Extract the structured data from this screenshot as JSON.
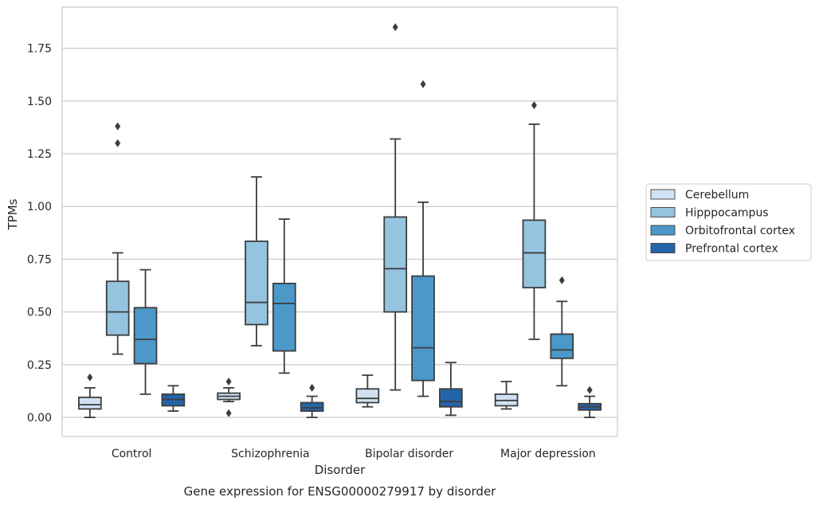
{
  "chart_data": {
    "type": "boxplot",
    "title": "",
    "caption": "Gene expression for ENSG00000279917 by disorder",
    "xlabel": "Disorder",
    "ylabel": "TPMs",
    "ylim": [
      -0.09,
      1.94
    ],
    "yticks": [
      "0.00",
      "0.25",
      "0.50",
      "0.75",
      "1.00",
      "1.25",
      "1.50",
      "1.75"
    ],
    "grid": "horizontal",
    "legend_position": "right",
    "categories": [
      "Control",
      "Schizophrenia",
      "Bipolar disorder",
      "Major depression"
    ],
    "series": [
      {
        "name": "Cerebellum",
        "color": "#d0e1f2",
        "boxes": [
          {
            "whislo": 0.0,
            "q1": 0.04,
            "med": 0.06,
            "q3": 0.095,
            "whishi": 0.14,
            "fliers": [
              0.19
            ]
          },
          {
            "whislo": 0.075,
            "q1": 0.085,
            "med": 0.1,
            "q3": 0.115,
            "whishi": 0.14,
            "fliers": [
              0.02,
              0.17
            ]
          },
          {
            "whislo": 0.05,
            "q1": 0.07,
            "med": 0.09,
            "q3": 0.135,
            "whishi": 0.2,
            "fliers": []
          },
          {
            "whislo": 0.04,
            "q1": 0.055,
            "med": 0.08,
            "q3": 0.11,
            "whishi": 0.17,
            "fliers": []
          }
        ]
      },
      {
        "name": "Hipppocampus",
        "color": "#94c4df",
        "boxes": [
          {
            "whislo": 0.3,
            "q1": 0.39,
            "med": 0.5,
            "q3": 0.645,
            "whishi": 0.78,
            "fliers": [
              1.3,
              1.38
            ]
          },
          {
            "whislo": 0.34,
            "q1": 0.44,
            "med": 0.545,
            "q3": 0.835,
            "whishi": 1.14,
            "fliers": []
          },
          {
            "whislo": 0.13,
            "q1": 0.5,
            "med": 0.705,
            "q3": 0.95,
            "whishi": 1.32,
            "fliers": [
              1.85
            ]
          },
          {
            "whislo": 0.37,
            "q1": 0.615,
            "med": 0.78,
            "q3": 0.935,
            "whishi": 1.39,
            "fliers": [
              1.48
            ]
          }
        ]
      },
      {
        "name": "Orbitofrontal cortex",
        "color": "#4b98c9",
        "boxes": [
          {
            "whislo": 0.11,
            "q1": 0.255,
            "med": 0.37,
            "q3": 0.52,
            "whishi": 0.7,
            "fliers": []
          },
          {
            "whislo": 0.21,
            "q1": 0.315,
            "med": 0.54,
            "q3": 0.635,
            "whishi": 0.94,
            "fliers": []
          },
          {
            "whislo": 0.1,
            "q1": 0.175,
            "med": 0.33,
            "q3": 0.67,
            "whishi": 1.02,
            "fliers": [
              1.58
            ]
          },
          {
            "whislo": 0.15,
            "q1": 0.28,
            "med": 0.32,
            "q3": 0.395,
            "whishi": 0.55,
            "fliers": [
              0.65
            ]
          }
        ]
      },
      {
        "name": "Prefrontal cortex",
        "color": "#2464a9",
        "boxes": [
          {
            "whislo": 0.03,
            "q1": 0.055,
            "med": 0.085,
            "q3": 0.11,
            "whishi": 0.15,
            "fliers": []
          },
          {
            "whislo": 0.0,
            "q1": 0.03,
            "med": 0.045,
            "q3": 0.07,
            "whishi": 0.1,
            "fliers": [
              0.14
            ]
          },
          {
            "whislo": 0.01,
            "q1": 0.05,
            "med": 0.075,
            "q3": 0.135,
            "whishi": 0.26,
            "fliers": []
          },
          {
            "whislo": 0.0,
            "q1": 0.035,
            "med": 0.05,
            "q3": 0.065,
            "whishi": 0.1,
            "fliers": [
              0.13
            ]
          }
        ]
      }
    ]
  }
}
